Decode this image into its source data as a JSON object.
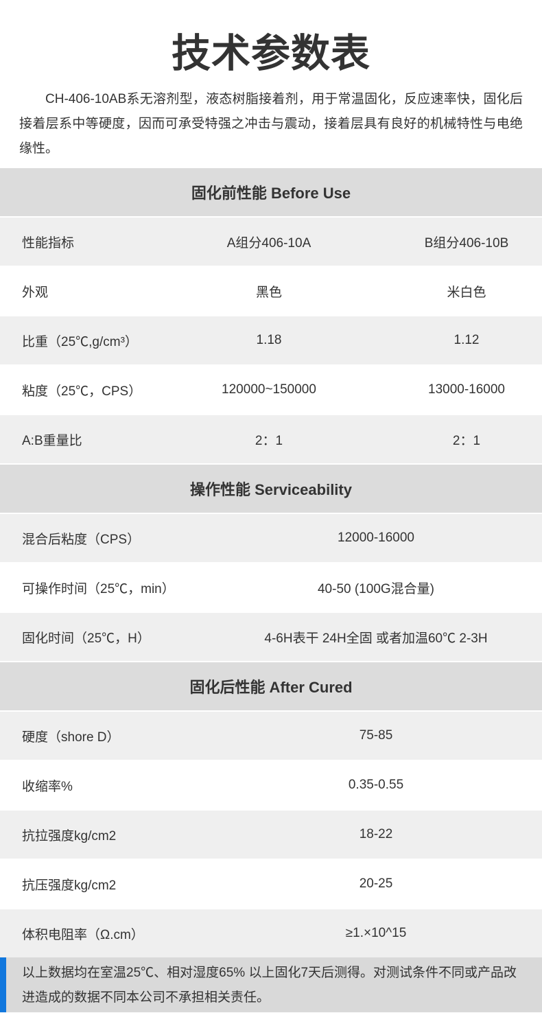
{
  "page": {
    "title": "技术参数表",
    "intro": "CH-406-10AB系无溶剂型，液态树脂接着剂，用于常温固化，反应速率快，固化后接着层系中等硬度，因而可承受特强之冲击与震动，接着层具有良好的机械特性与电绝缘性。"
  },
  "colors": {
    "text": "#333333",
    "section_header_bg": "#dcdcdc",
    "row_alt_bg": "#efefef",
    "row_bg": "#ffffff",
    "footer_bg": "#d9d9d9",
    "accent_blue": "#1177dd"
  },
  "sections": [
    {
      "title": "固化前性能 Before Use",
      "columns": [
        "性能指标",
        "A组分406-10A",
        "B组分406-10B"
      ],
      "rows": [
        {
          "label": "性能指标",
          "a": "A组分406-10A",
          "b": "B组分406-10B"
        },
        {
          "label": "外观",
          "a": "黑色",
          "b": "米白色"
        },
        {
          "label": "比重（25℃,g/cm³）",
          "a": "1.18",
          "b": "1.12"
        },
        {
          "label": "粘度（25℃，CPS）",
          "a": "120000~150000",
          "b": "13000-16000"
        },
        {
          "label": "A:B重量比",
          "a": "2：1",
          "b": "2：1"
        }
      ]
    },
    {
      "title": "操作性能 Serviceability",
      "rows": [
        {
          "label": "混合后粘度（CPS）",
          "value": "12000-16000"
        },
        {
          "label": "可操作时间（25℃，min）",
          "value": "40-50 (100G混合量)"
        },
        {
          "label": "固化时间（25℃，H）",
          "value": "4-6H表干 24H全固  或者加温60℃ 2-3H"
        }
      ]
    },
    {
      "title": "固化后性能 After Cured",
      "rows": [
        {
          "label": "硬度（shore D）",
          "value": "75-85"
        },
        {
          "label": "收缩率%",
          "value": "0.35-0.55"
        },
        {
          "label": "抗拉强度kg/cm2",
          "value": "18-22"
        },
        {
          "label": "抗压强度kg/cm2",
          "value": "20-25"
        },
        {
          "label": "体积电阻率（Ω.cm）",
          "value": "≥1.×10^15"
        }
      ]
    }
  ],
  "footer": {
    "note": "以上数据均在室温25℃、相对湿度65% 以上固化7天后测得。对测试条件不同或产品改进造成的数据不同本公司不承担相关责任。"
  }
}
